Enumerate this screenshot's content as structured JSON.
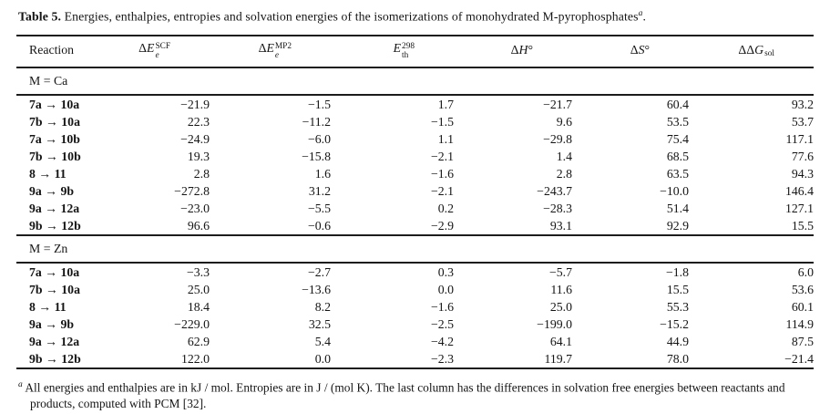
{
  "title": {
    "label": "Table 5.",
    "text": "Energies, enthalpies, entropies and solvation energies of the isomerizations of monohydrated M-pyrophosphates",
    "note_marker": "a",
    "suffix": "."
  },
  "columns": [
    {
      "prefix": "Reaction",
      "symbol": "",
      "sup": "",
      "sub": "",
      "suffix": ""
    },
    {
      "prefix": "Δ",
      "symbol": "E",
      "sub": "e",
      "sup": "SCF",
      "suffix": ""
    },
    {
      "prefix": "Δ",
      "symbol": "E",
      "sub": "e",
      "sup": "MP2",
      "suffix": ""
    },
    {
      "prefix": "",
      "symbol": "E",
      "sub": "th",
      "sup": "298",
      "suffix": ""
    },
    {
      "prefix": "Δ",
      "symbol": "H",
      "sub": "",
      "sup": "",
      "suffix": "°"
    },
    {
      "prefix": "Δ",
      "symbol": "S",
      "sub": "",
      "sup": "",
      "suffix": "°"
    },
    {
      "prefix": "ΔΔ",
      "symbol": "G",
      "sub": "sol",
      "sup": "",
      "suffix": ""
    }
  ],
  "sections": [
    {
      "label": "M = Ca",
      "rows": [
        {
          "reaction": "7a → 10a",
          "values": [
            "−21.9",
            "−1.5",
            "1.7",
            "−21.7",
            "60.4",
            "93.2"
          ]
        },
        {
          "reaction": "7b → 10a",
          "values": [
            "22.3",
            "−11.2",
            "−1.5",
            "9.6",
            "53.5",
            "53.7"
          ]
        },
        {
          "reaction": "7a → 10b",
          "values": [
            "−24.9",
            "−6.0",
            "1.1",
            "−29.8",
            "75.4",
            "117.1"
          ]
        },
        {
          "reaction": "7b → 10b",
          "values": [
            "19.3",
            "−15.8",
            "−2.1",
            "1.4",
            "68.5",
            "77.6"
          ]
        },
        {
          "reaction": "8 → 11",
          "values": [
            "2.8",
            "1.6",
            "−1.6",
            "2.8",
            "63.5",
            "94.3"
          ]
        },
        {
          "reaction": "9a → 9b",
          "values": [
            "−272.8",
            "31.2",
            "−2.1",
            "−243.7",
            "−10.0",
            "146.4"
          ]
        },
        {
          "reaction": "9a → 12a",
          "values": [
            "−23.0",
            "−5.5",
            "0.2",
            "−28.3",
            "51.4",
            "127.1"
          ]
        },
        {
          "reaction": "9b → 12b",
          "values": [
            "96.6",
            "−0.6",
            "−2.9",
            "93.1",
            "92.9",
            "15.5"
          ]
        }
      ]
    },
    {
      "label": "M = Zn",
      "rows": [
        {
          "reaction": "7a → 10a",
          "values": [
            "−3.3",
            "−2.7",
            "0.3",
            "−5.7",
            "−1.8",
            "6.0"
          ]
        },
        {
          "reaction": "7b → 10a",
          "values": [
            "25.0",
            "−13.6",
            "0.0",
            "11.6",
            "15.5",
            "53.6"
          ]
        },
        {
          "reaction": "8 → 11",
          "values": [
            "18.4",
            "8.2",
            "−1.6",
            "25.0",
            "55.3",
            "60.1"
          ]
        },
        {
          "reaction": "9a → 9b",
          "values": [
            "−229.0",
            "32.5",
            "−2.5",
            "−199.0",
            "−15.2",
            "114.9"
          ]
        },
        {
          "reaction": "9a → 12a",
          "values": [
            "62.9",
            "5.4",
            "−4.2",
            "64.1",
            "44.9",
            "87.5"
          ]
        },
        {
          "reaction": "9b → 12b",
          "values": [
            "122.0",
            "0.0",
            "−2.3",
            "119.7",
            "78.0",
            "−21.4"
          ]
        }
      ]
    }
  ],
  "footnote": {
    "marker": "a",
    "text": "All energies and enthalpies are in kJ / mol. Entropies are in J / (mol K). The last column has the differences in solvation free energies between reactants and products, computed with PCM [32]."
  }
}
